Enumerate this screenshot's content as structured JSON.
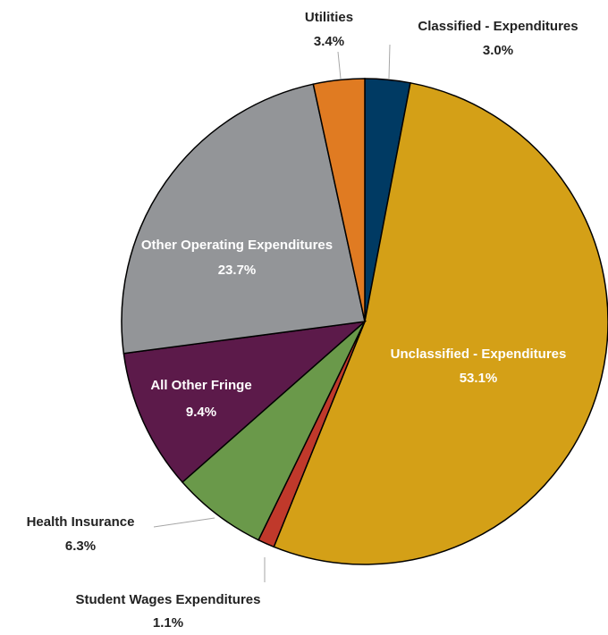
{
  "chart_data": {
    "type": "pie",
    "categories": [
      "Classified - Expenditures",
      "Unclassified - Expenditures",
      "Student Wages Expenditures",
      "Health Insurance",
      "All Other Fringe",
      "Other Operating Expenditures",
      "Utilities"
    ],
    "values": [
      3.0,
      53.1,
      1.1,
      6.3,
      9.4,
      23.7,
      3.4
    ],
    "value_labels": [
      "3.0%",
      "53.1%",
      "1.1%",
      "6.3%",
      "9.4%",
      "23.7%",
      "3.4%"
    ],
    "colors": [
      "#003a63",
      "#d4a017",
      "#c0392b",
      "#6a994a",
      "#5c1a4a",
      "#939598",
      "#e07b22"
    ]
  }
}
